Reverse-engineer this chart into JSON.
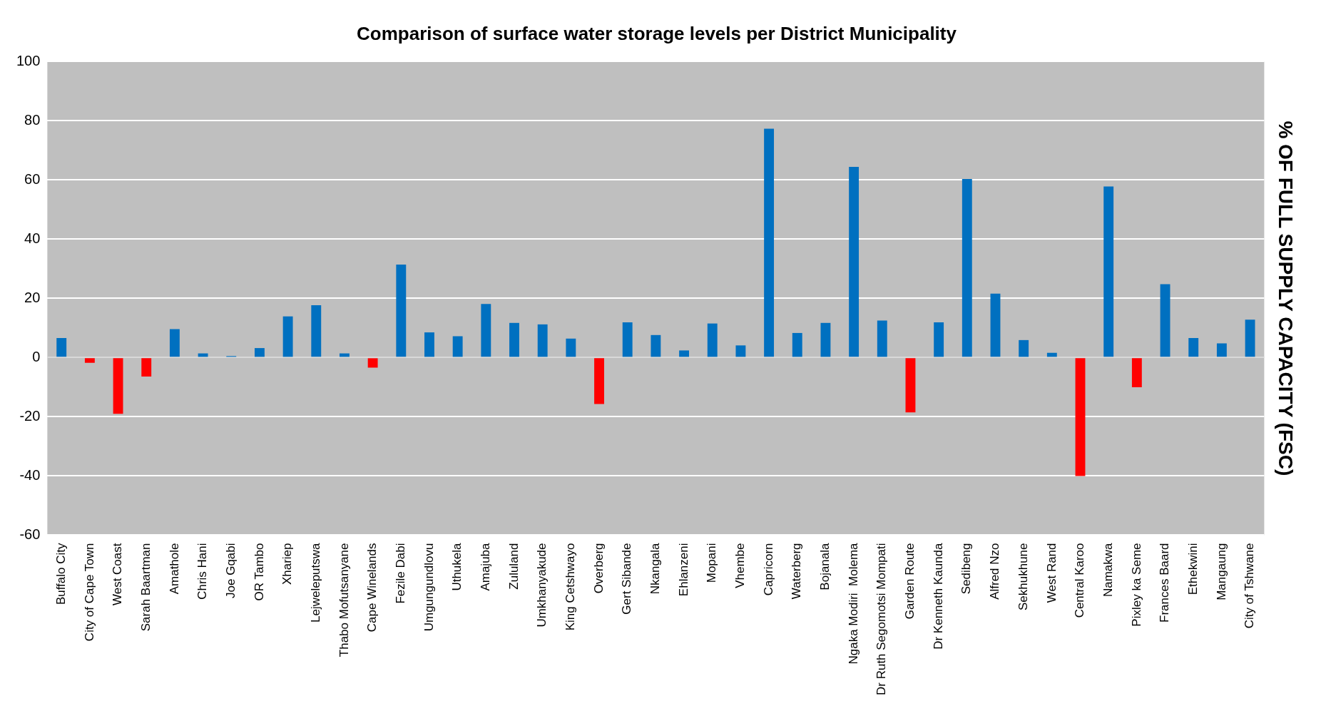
{
  "chart_data": {
    "type": "bar",
    "title": "Comparison of surface water storage levels per District Municipality",
    "ylabel": "% OF FULL SUPPLY CAPACITY (FSC)",
    "categories": [
      "Buffalo City",
      "City of Cape Town",
      "West Coast",
      "Sarah Baartman",
      "Amathole",
      "Chris Hani",
      "Joe Gqabi",
      "OR Tambo",
      "Xhariep",
      "Lejweleputswa",
      "Thabo Mofutsanyane",
      "Cape Winelands",
      "Fezile Dabi",
      "Umgungundlovu",
      "Uthukela",
      "Amajuba",
      "Zululand",
      "Umkhanyakude",
      "King Cetshwayo",
      "Overberg",
      "Gert Sibande",
      "Nkangala",
      "Ehlanzeni",
      "Mopani",
      "Vhembe",
      "Capricorn",
      "Waterberg",
      "Bojanala",
      "Ngaka Modiri  Molema",
      "Dr Ruth Segomotsi Mompati",
      "Garden Route",
      "Dr Kenneth Kaunda",
      "Sedibeng",
      "Alfred Nzo",
      "Sekhukhune",
      "West Rand",
      "Central Karoo",
      "Namakwa",
      "Pixley ka Seme",
      "Frances Baard",
      "Ethekwini",
      "Mangaung",
      "City of Tshwane"
    ],
    "values": [
      6.6,
      -1.8,
      -19,
      -6.4,
      9.6,
      1.4,
      0.5,
      3.2,
      13.9,
      17.7,
      1.4,
      -3.4,
      31.4,
      8.5,
      7.2,
      18.1,
      11.7,
      11.2,
      6.4,
      -15.7,
      11.9,
      7.6,
      2.4,
      11.5,
      4.1,
      77.3,
      8.3,
      11.7,
      64.4,
      12.5,
      -18.5,
      11.9,
      60.3,
      21.6,
      5.9,
      1.6,
      -40,
      57.8,
      -10,
      24.8,
      6.6,
      4.8,
      12.8
    ],
    "colors": [
      "#0070c0",
      "#ff0000",
      "#ff0000",
      "#ff0000",
      "#0070c0",
      "#0070c0",
      "#0070c0",
      "#0070c0",
      "#0070c0",
      "#0070c0",
      "#0070c0",
      "#ff0000",
      "#0070c0",
      "#0070c0",
      "#0070c0",
      "#0070c0",
      "#0070c0",
      "#0070c0",
      "#0070c0",
      "#ff0000",
      "#0070c0",
      "#0070c0",
      "#0070c0",
      "#0070c0",
      "#0070c0",
      "#0070c0",
      "#0070c0",
      "#0070c0",
      "#0070c0",
      "#0070c0",
      "#ff0000",
      "#0070c0",
      "#0070c0",
      "#0070c0",
      "#0070c0",
      "#0070c0",
      "#ff0000",
      "#0070c0",
      "#ff0000",
      "#0070c0",
      "#0070c0",
      "#0070c0",
      "#0070c0"
    ],
    "ylim": [
      -60,
      100
    ],
    "yticks": [
      -60,
      -40,
      -20,
      0,
      20,
      40,
      60,
      80,
      100
    ],
    "grid": "y",
    "legend": false
  }
}
